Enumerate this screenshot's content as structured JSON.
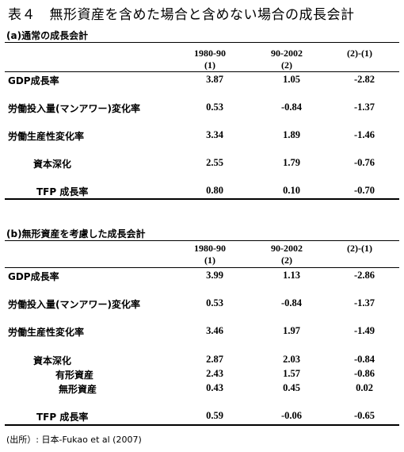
{
  "title": "表４　無形資産を含めた場合と含めない場合の成長会計",
  "section_a": {
    "label": "(a)通常の成長会計",
    "headers": [
      {
        "top": "1980-90",
        "bottom": "(1)"
      },
      {
        "top": "90-2002",
        "bottom": "(2)"
      },
      {
        "top": "(2)-(1)",
        "bottom": ""
      }
    ],
    "rows": [
      {
        "label": "GDP成長率",
        "values": [
          "3.87",
          "1.05",
          "-2.82"
        ]
      },
      {
        "label": "労働投入量(マンアワー)変化率",
        "values": [
          "0.53",
          "-0.84",
          "-1.37"
        ]
      },
      {
        "label": "労働生産性変化率",
        "values": [
          "3.34",
          "1.89",
          "-1.46"
        ]
      },
      {
        "label": "資本深化",
        "values": [
          "2.55",
          "1.79",
          "-0.76"
        ]
      },
      {
        "label": "TFP 成長率",
        "values": [
          "0.80",
          "0.10",
          "-0.70"
        ]
      }
    ]
  },
  "section_b": {
    "label": "(b)無形資産を考慮した成長会計",
    "headers": [
      {
        "top": "1980-90",
        "bottom": "(1)"
      },
      {
        "top": "90-2002",
        "bottom": "(2)"
      },
      {
        "top": "(2)-(1)",
        "bottom": ""
      }
    ],
    "rows": [
      {
        "label": "GDP成長率",
        "values": [
          "3.99",
          "1.13",
          "-2.86"
        ]
      },
      {
        "label": "労働投入量(マンアワー)変化率",
        "values": [
          "0.53",
          "-0.84",
          "-1.37"
        ]
      },
      {
        "label": "労働生産性変化率",
        "values": [
          "3.46",
          "1.97",
          "-1.49"
        ]
      },
      {
        "label": "資本深化",
        "values": [
          "2.87",
          "2.03",
          "-0.84"
        ]
      },
      {
        "label": "有形資産",
        "values": [
          "2.43",
          "1.57",
          "-0.86"
        ]
      },
      {
        "label": "無形資産",
        "values": [
          "0.43",
          "0.45",
          "0.02"
        ]
      },
      {
        "label": "TFP 成長率",
        "values": [
          "0.59",
          "-0.06",
          "-0.65"
        ]
      }
    ]
  },
  "source": "(出所）: 日本-Fukao et al (2007)"
}
